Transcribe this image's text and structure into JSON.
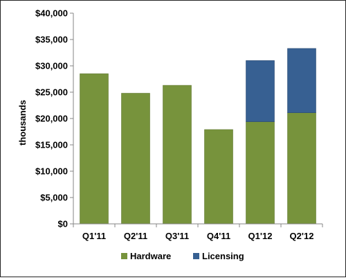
{
  "chart_data": {
    "type": "bar",
    "stacked": true,
    "categories": [
      "Q1'11",
      "Q2'11",
      "Q3'11",
      "Q4'11",
      "Q1'12",
      "Q2'12"
    ],
    "series": [
      {
        "name": "Hardware",
        "color": "#77933c",
        "values": [
          28500,
          24800,
          26300,
          17900,
          19400,
          21100
        ]
      },
      {
        "name": "Licensing",
        "color": "#376092",
        "values": [
          0,
          0,
          0,
          0,
          11600,
          12200
        ]
      }
    ],
    "ylabel": "thousands",
    "xlabel": "",
    "ylim": [
      0,
      40000
    ],
    "yticks": [
      "$0",
      "$5,000",
      "$10,000",
      "$15,000",
      "$20,000",
      "$25,000",
      "$30,000",
      "$35,000",
      "$40,000"
    ],
    "ytick_values": [
      0,
      5000,
      10000,
      15000,
      20000,
      25000,
      30000,
      35000,
      40000
    ],
    "grid": false,
    "legend_position": "bottom",
    "axis_color": "#868686"
  }
}
